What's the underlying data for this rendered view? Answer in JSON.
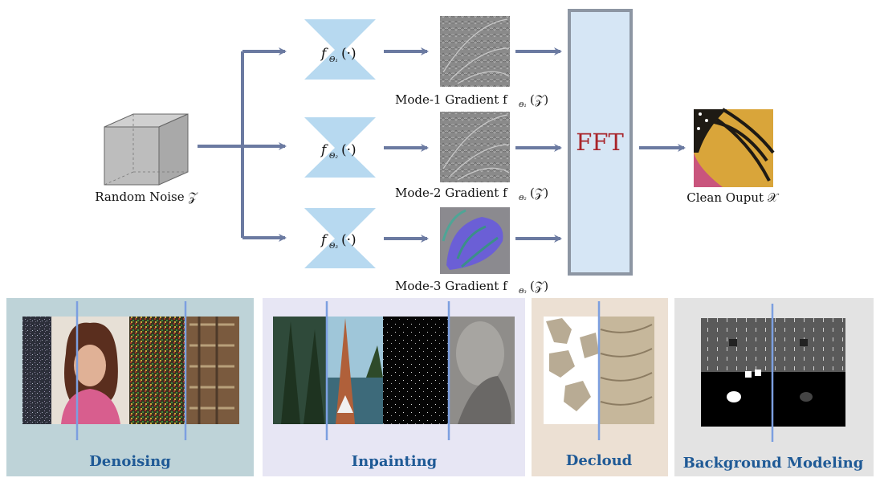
{
  "diagram": {
    "input_label": "Random Noise 𝒵",
    "output_label": "Clean Ouput 𝒳",
    "fft_label": "FFT",
    "branches": [
      {
        "net": "f",
        "sub": "Θ₁",
        "arg": "(·)",
        "caption": "Mode-1  Gradient  f",
        "caption_sub": "Θ₁",
        "caption_arg": "(𝒵)"
      },
      {
        "net": "f",
        "sub": "Θ₂",
        "arg": "(·)",
        "caption": "Mode-2  Gradient  f",
        "caption_sub": "Θ₂",
        "caption_arg": "(𝒵)"
      },
      {
        "net": "f",
        "sub": "Θ₃",
        "arg": "(·)",
        "caption": "Mode-3  Gradient  f",
        "caption_sub": "Θ₃",
        "caption_arg": "(𝒵)"
      }
    ]
  },
  "applications": [
    {
      "title": "Denoising"
    },
    {
      "title": "Inpainting"
    },
    {
      "title": "Decloud"
    },
    {
      "title": "Background Modeling"
    }
  ],
  "colors": {
    "arrow": "#6b7aa1",
    "network": "#b7d9f0",
    "fft_fill": "#d6e6f5",
    "fft_border": "#8d96a3",
    "fft_text": "#a8242a",
    "panel_denoising": "#bed3d8",
    "panel_inpainting": "#e7e6f4",
    "panel_decloud": "#ece0d3",
    "panel_background": "#e3e3e3",
    "divider": "#7c9fe0",
    "title": "#1f5a96"
  }
}
